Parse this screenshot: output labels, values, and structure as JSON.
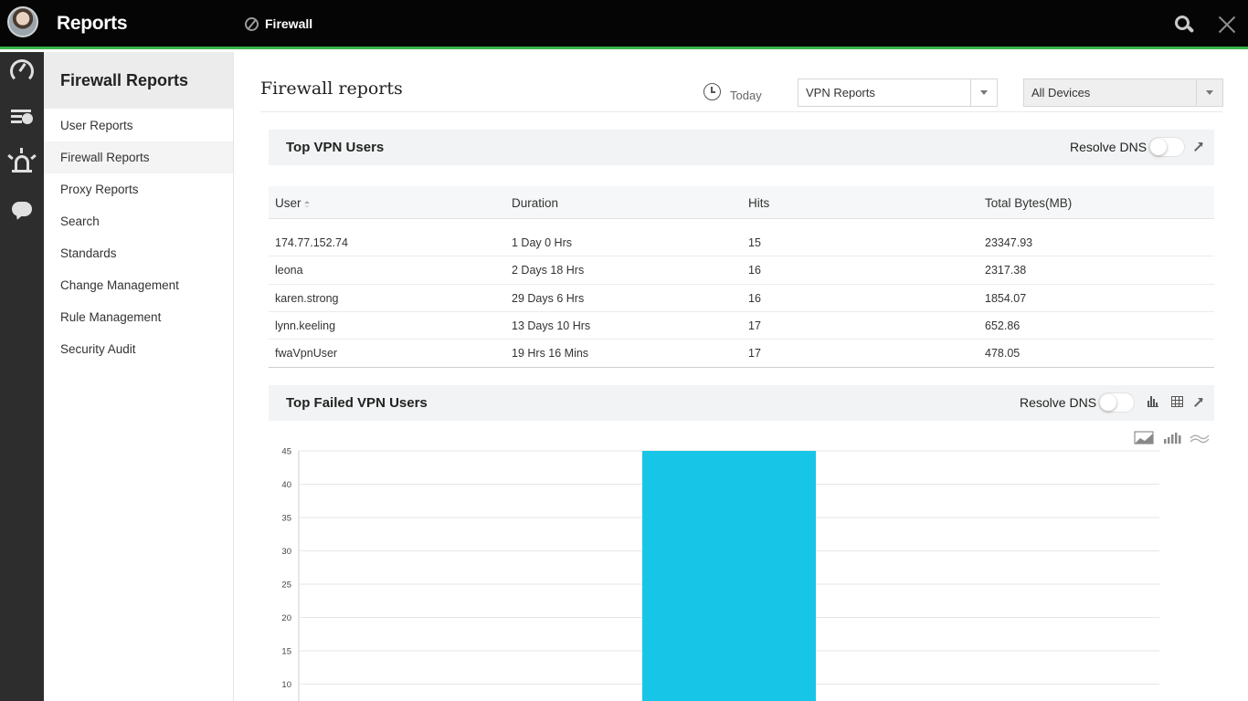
{
  "topbar": {
    "app_title": "Reports",
    "breadcrumb": "Firewall"
  },
  "sidebar": {
    "title": "Firewall Reports",
    "items": [
      {
        "label": "User Reports"
      },
      {
        "label": "Firewall Reports"
      },
      {
        "label": "Proxy Reports"
      },
      {
        "label": "Search"
      },
      {
        "label": "Standards"
      },
      {
        "label": "Change Management"
      },
      {
        "label": "Rule Management"
      },
      {
        "label": "Security Audit"
      }
    ],
    "active_index": 1
  },
  "main": {
    "page_title": "Firewall reports",
    "period_label": "Today",
    "report_select": {
      "value": "VPN Reports"
    },
    "device_select": {
      "value": "All Devices"
    }
  },
  "top_vpn_users": {
    "title": "Top VPN Users",
    "resolve_dns_label": "Resolve DNS",
    "columns": [
      "User",
      "Duration",
      "Hits",
      "Total Bytes(MB)"
    ],
    "rows": [
      {
        "user": "174.77.152.74",
        "duration": "1 Day 0 Hrs",
        "hits": "15",
        "bytes": "23347.93"
      },
      {
        "user": "leona",
        "duration": "2 Days 18 Hrs",
        "hits": "16",
        "bytes": "2317.38"
      },
      {
        "user": "karen.strong",
        "duration": "29 Days 6 Hrs",
        "hits": "16",
        "bytes": "1854.07"
      },
      {
        "user": "lynn.keeling",
        "duration": "13 Days 10 Hrs",
        "hits": "17",
        "bytes": "652.86"
      },
      {
        "user": "fwaVpnUser",
        "duration": "19 Hrs 16 Mins",
        "hits": "17",
        "bytes": "478.05"
      }
    ]
  },
  "top_failed_vpn_users": {
    "title": "Top Failed VPN Users",
    "resolve_dns_label": "Resolve DNS"
  },
  "colors": {
    "accent_green": "#3ab54a",
    "bar_cyan": "#17c6e6"
  },
  "chart_data": {
    "type": "bar",
    "categories": [
      ""
    ],
    "values": [
      45
    ],
    "title": "",
    "xlabel": "",
    "ylabel": "",
    "yticks": [
      10,
      15,
      20,
      25,
      30,
      35,
      40,
      45
    ],
    "ylim": [
      0,
      45
    ],
    "grid": true,
    "color": "#17c6e6"
  }
}
